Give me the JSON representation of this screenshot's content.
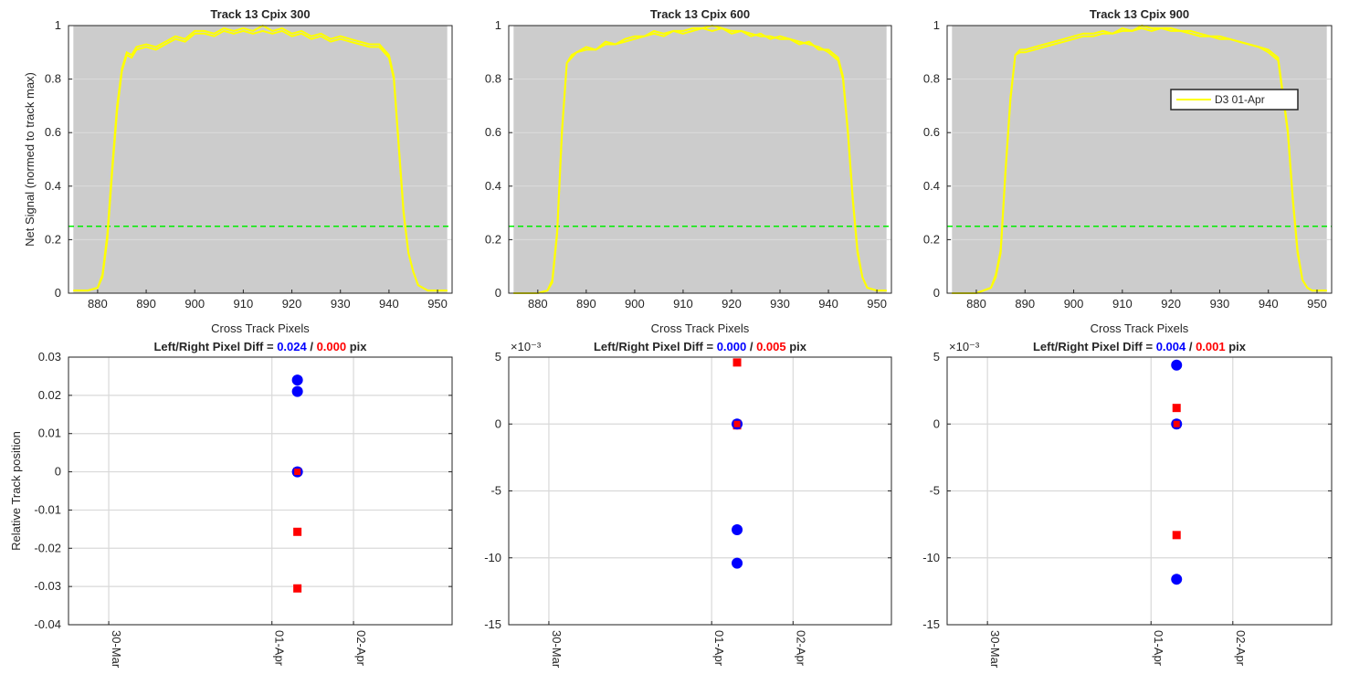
{
  "figure": {
    "threshold": 0.25,
    "colors": {
      "plot_bg": "#cccccc",
      "signal": "#ffff00",
      "threshold": "#00ee00",
      "left_marker": "#0000ff",
      "right_marker": "#ff0000",
      "axis": "#262626",
      "grid": "#d9d9d9"
    },
    "legend": {
      "label": "D3 01-Apr",
      "panel": 2,
      "placement": "upper-right"
    }
  },
  "chart_data": [
    {
      "type": "line",
      "title": "Track 13  Cpix 300",
      "xlabel": "Cross Track Pixels",
      "ylabel": "Net Signal (normed to track max)",
      "xlim": [
        874,
        953
      ],
      "ylim": [
        0,
        1
      ],
      "xticks": [
        880,
        890,
        900,
        910,
        920,
        930,
        940,
        950
      ],
      "yticks": [
        0,
        0.2,
        0.4,
        0.6,
        0.8,
        1
      ],
      "ytick_labels": [
        "0",
        "0.2",
        "0.4",
        "0.6",
        "0.8",
        "1"
      ],
      "shaded_x": [
        875,
        952
      ],
      "threshold_line": 0.25,
      "series": [
        {
          "x": [
            875,
            878,
            880,
            881,
            882,
            883,
            884,
            885,
            886,
            887,
            888,
            890,
            892,
            894,
            896,
            898,
            900,
            902,
            904,
            906,
            908,
            910,
            912,
            914,
            916,
            918,
            920,
            922,
            924,
            926,
            928,
            930,
            932,
            934,
            936,
            938,
            940,
            941,
            942,
            943,
            944,
            945,
            946,
            948,
            950,
            952
          ],
          "y": [
            0.01,
            0.01,
            0.02,
            0.06,
            0.2,
            0.45,
            0.68,
            0.83,
            0.89,
            0.88,
            0.91,
            0.92,
            0.91,
            0.93,
            0.95,
            0.94,
            0.97,
            0.97,
            0.96,
            0.98,
            0.97,
            0.98,
            0.97,
            0.98,
            0.97,
            0.98,
            0.96,
            0.97,
            0.95,
            0.96,
            0.94,
            0.95,
            0.94,
            0.93,
            0.92,
            0.92,
            0.88,
            0.8,
            0.55,
            0.3,
            0.15,
            0.08,
            0.03,
            0.01,
            0.01,
            0.01
          ]
        },
        {
          "x": [
            875,
            878,
            880,
            881,
            882,
            883,
            884,
            885,
            886,
            887,
            888,
            890,
            892,
            894,
            896,
            898,
            900,
            902,
            904,
            906,
            908,
            910,
            912,
            914,
            916,
            918,
            920,
            922,
            924,
            926,
            928,
            930,
            932,
            934,
            936,
            938,
            940,
            941,
            942,
            943,
            944,
            945,
            946,
            948,
            950,
            952
          ],
          "y": [
            0.01,
            0.01,
            0.02,
            0.07,
            0.22,
            0.47,
            0.7,
            0.84,
            0.9,
            0.89,
            0.92,
            0.93,
            0.92,
            0.94,
            0.96,
            0.95,
            0.98,
            0.98,
            0.97,
            0.99,
            0.98,
            0.99,
            0.98,
            1.0,
            0.98,
            0.99,
            0.97,
            0.98,
            0.96,
            0.97,
            0.95,
            0.96,
            0.95,
            0.94,
            0.93,
            0.93,
            0.89,
            0.81,
            0.56,
            0.31,
            0.15,
            0.08,
            0.03,
            0.01,
            0.01,
            0.01
          ]
        }
      ]
    },
    {
      "type": "line",
      "title": "Track 13  Cpix 600",
      "xlabel": "Cross Track Pixels",
      "ylabel": "",
      "xlim": [
        874,
        953
      ],
      "ylim": [
        0,
        1
      ],
      "xticks": [
        880,
        890,
        900,
        910,
        920,
        930,
        940,
        950
      ],
      "yticks": [
        0,
        0.2,
        0.4,
        0.6,
        0.8,
        1
      ],
      "ytick_labels": [
        "0",
        "0.2",
        "0.4",
        "0.6",
        "0.8",
        "1"
      ],
      "shaded_x": [
        875,
        952
      ],
      "threshold_line": 0.25,
      "series": [
        {
          "x": [
            875,
            880,
            882,
            883,
            884,
            885,
            886,
            887,
            888,
            890,
            892,
            894,
            896,
            898,
            900,
            902,
            904,
            906,
            908,
            910,
            912,
            914,
            916,
            918,
            920,
            922,
            924,
            926,
            928,
            930,
            932,
            934,
            936,
            938,
            940,
            942,
            943,
            944,
            945,
            946,
            947,
            948,
            950,
            952
          ],
          "y": [
            0.0,
            0.0,
            0.01,
            0.04,
            0.22,
            0.6,
            0.86,
            0.88,
            0.9,
            0.91,
            0.91,
            0.93,
            0.93,
            0.94,
            0.95,
            0.96,
            0.97,
            0.96,
            0.98,
            0.97,
            0.98,
            0.99,
            0.98,
            0.99,
            0.97,
            0.98,
            0.96,
            0.97,
            0.95,
            0.96,
            0.95,
            0.94,
            0.93,
            0.92,
            0.9,
            0.87,
            0.8,
            0.6,
            0.35,
            0.15,
            0.06,
            0.02,
            0.01,
            0.01
          ]
        },
        {
          "x": [
            875,
            880,
            882,
            883,
            884,
            885,
            886,
            887,
            888,
            890,
            892,
            894,
            896,
            898,
            900,
            902,
            904,
            906,
            908,
            910,
            912,
            914,
            916,
            918,
            920,
            922,
            924,
            926,
            928,
            930,
            932,
            934,
            936,
            938,
            940,
            942,
            943,
            944,
            945,
            946,
            947,
            948,
            950,
            952
          ],
          "y": [
            0.0,
            0.0,
            0.01,
            0.05,
            0.23,
            0.61,
            0.86,
            0.89,
            0.9,
            0.92,
            0.91,
            0.94,
            0.93,
            0.95,
            0.96,
            0.96,
            0.98,
            0.97,
            0.98,
            0.98,
            0.99,
            0.99,
            1.0,
            0.99,
            0.98,
            0.98,
            0.97,
            0.96,
            0.96,
            0.95,
            0.95,
            0.93,
            0.94,
            0.91,
            0.91,
            0.88,
            0.81,
            0.61,
            0.36,
            0.16,
            0.06,
            0.02,
            0.01,
            0.01
          ]
        }
      ]
    },
    {
      "type": "line",
      "title": "Track 13  Cpix 900",
      "xlabel": "Cross Track Pixels",
      "ylabel": "",
      "xlim": [
        874,
        953
      ],
      "ylim": [
        0,
        1
      ],
      "xticks": [
        880,
        890,
        900,
        910,
        920,
        930,
        940,
        950
      ],
      "yticks": [
        0,
        0.2,
        0.4,
        0.6,
        0.8,
        1
      ],
      "ytick_labels": [
        "0",
        "0.2",
        "0.4",
        "0.6",
        "0.8",
        "1"
      ],
      "shaded_x": [
        875,
        952
      ],
      "threshold_line": 0.25,
      "series": [
        {
          "x": [
            875,
            880,
            883,
            884,
            885,
            886,
            887,
            888,
            889,
            890,
            892,
            894,
            896,
            898,
            900,
            902,
            904,
            906,
            908,
            910,
            912,
            914,
            916,
            918,
            920,
            922,
            924,
            926,
            928,
            930,
            932,
            934,
            936,
            938,
            940,
            942,
            944,
            945,
            946,
            947,
            948,
            949,
            950,
            952
          ],
          "y": [
            0.0,
            0.0,
            0.02,
            0.06,
            0.15,
            0.45,
            0.72,
            0.89,
            0.9,
            0.9,
            0.91,
            0.92,
            0.93,
            0.94,
            0.95,
            0.96,
            0.96,
            0.97,
            0.97,
            0.98,
            0.98,
            0.99,
            0.98,
            0.99,
            0.98,
            0.98,
            0.97,
            0.96,
            0.96,
            0.95,
            0.95,
            0.94,
            0.93,
            0.92,
            0.9,
            0.87,
            0.6,
            0.35,
            0.15,
            0.05,
            0.02,
            0.01,
            0.01,
            0.01
          ]
        },
        {
          "x": [
            875,
            880,
            883,
            884,
            885,
            886,
            887,
            888,
            889,
            890,
            892,
            894,
            896,
            898,
            900,
            902,
            904,
            906,
            908,
            910,
            912,
            914,
            916,
            918,
            920,
            922,
            924,
            926,
            928,
            930,
            932,
            934,
            936,
            938,
            940,
            942,
            944,
            945,
            946,
            947,
            948,
            949,
            950,
            952
          ],
          "y": [
            0.0,
            0.0,
            0.02,
            0.07,
            0.16,
            0.46,
            0.73,
            0.89,
            0.91,
            0.91,
            0.92,
            0.93,
            0.94,
            0.95,
            0.96,
            0.97,
            0.97,
            0.98,
            0.97,
            0.99,
            0.98,
            1.0,
            0.99,
            0.99,
            0.99,
            0.98,
            0.98,
            0.97,
            0.96,
            0.96,
            0.95,
            0.94,
            0.93,
            0.92,
            0.91,
            0.88,
            0.61,
            0.36,
            0.16,
            0.05,
            0.02,
            0.01,
            0.01,
            0.01
          ]
        }
      ]
    },
    {
      "type": "scatter",
      "title_prefix": "Left/Right Pixel Diff = ",
      "title_left": "0.024",
      "title_sep": " / ",
      "title_right": "0.000",
      "title_suffix": " pix",
      "xlabel": "",
      "ylabel": "Relative Track position",
      "exponent": "",
      "xlim": [
        "29-Mar 12:10",
        "03-Apr 05:00"
      ],
      "ylim": [
        -0.04,
        0.03
      ],
      "yticks": [
        -0.04,
        -0.03,
        -0.02,
        -0.01,
        0,
        0.01,
        0.02,
        0.03
      ],
      "ytick_labels": [
        "-0.04",
        "-0.03",
        "-0.02",
        "-0.01",
        "0",
        "0.01",
        "0.02",
        "0.03"
      ],
      "xticks": [
        "30-Mar",
        "01-Apr",
        "02-Apr"
      ],
      "xtick_dates": [
        "30-Mar 00:00",
        "01-Apr 00:00",
        "02-Apr 00:00"
      ],
      "series": [
        {
          "name": "Left",
          "marker": "circle",
          "date": "01-Apr 07:30",
          "values": [
            0.024,
            0.021,
            0.0
          ]
        },
        {
          "name": "Right",
          "marker": "square",
          "date": "01-Apr 07:30",
          "values": [
            0.0,
            -0.0157,
            -0.0305
          ]
        }
      ]
    },
    {
      "type": "scatter",
      "title_prefix": "Left/Right Pixel Diff = ",
      "title_left": "0.000",
      "title_sep": " / ",
      "title_right": "0.005",
      "title_suffix": " pix",
      "xlabel": "",
      "ylabel": "",
      "exponent": "×10⁻³",
      "xlim": [
        "29-Mar 12:10",
        "03-Apr 05:00"
      ],
      "ylim": [
        -15,
        5
      ],
      "yticks": [
        -15,
        -10,
        -5,
        0,
        5
      ],
      "ytick_labels": [
        "-15",
        "-10",
        "-5",
        "0",
        "5"
      ],
      "xticks": [
        "30-Mar",
        "01-Apr",
        "02-Apr"
      ],
      "xtick_dates": [
        "30-Mar 00:00",
        "01-Apr 00:00",
        "02-Apr 00:00"
      ],
      "series": [
        {
          "name": "Left",
          "marker": "circle",
          "date": "01-Apr 07:30",
          "values": [
            0.0,
            -7.9,
            -10.4
          ]
        },
        {
          "name": "Right",
          "marker": "square",
          "date": "01-Apr 07:30",
          "values": [
            4.6,
            0.0,
            -0.1
          ]
        }
      ]
    },
    {
      "type": "scatter",
      "title_prefix": "Left/Right Pixel Diff = ",
      "title_left": "0.004",
      "title_sep": " / ",
      "title_right": "0.001",
      "title_suffix": " pix",
      "xlabel": "",
      "ylabel": "",
      "exponent": "×10⁻³",
      "xlim": [
        "29-Mar 12:10",
        "03-Apr 05:00"
      ],
      "ylim": [
        -15,
        5
      ],
      "yticks": [
        -15,
        -10,
        -5,
        0,
        5
      ],
      "ytick_labels": [
        "-15",
        "-10",
        "-5",
        "0",
        "5"
      ],
      "xticks": [
        "30-Mar",
        "01-Apr",
        "02-Apr"
      ],
      "xtick_dates": [
        "30-Mar 00:00",
        "01-Apr 00:00",
        "02-Apr 00:00"
      ],
      "series": [
        {
          "name": "Left",
          "marker": "circle",
          "date": "01-Apr 07:30",
          "values": [
            4.4,
            0.0,
            -11.6
          ]
        },
        {
          "name": "Right",
          "marker": "square",
          "date": "01-Apr 07:30",
          "values": [
            1.2,
            0.0,
            -8.3
          ]
        }
      ]
    }
  ]
}
